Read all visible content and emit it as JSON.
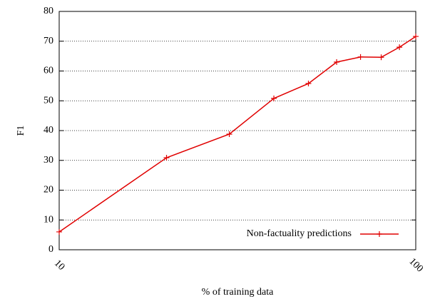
{
  "chart_data": {
    "type": "line",
    "x_label": "% of training data",
    "y_label": "F1",
    "x": [
      10,
      20,
      30,
      40,
      50,
      60,
      70,
      80,
      90,
      100
    ],
    "series": [
      {
        "name": "Non-factuality predictions",
        "color": "#e00000",
        "values": [
          6.0,
          30.9,
          38.8,
          50.8,
          55.8,
          63.0,
          64.7,
          64.6,
          68.0,
          71.6
        ]
      }
    ],
    "xlim": [
      10,
      100
    ],
    "xticks": [
      10,
      100
    ],
    "xscale": "log",
    "ylim": [
      0,
      80
    ],
    "yticks": [
      0,
      10,
      20,
      30,
      40,
      50,
      60,
      70,
      80
    ],
    "grid": true,
    "legend": "lower right"
  }
}
